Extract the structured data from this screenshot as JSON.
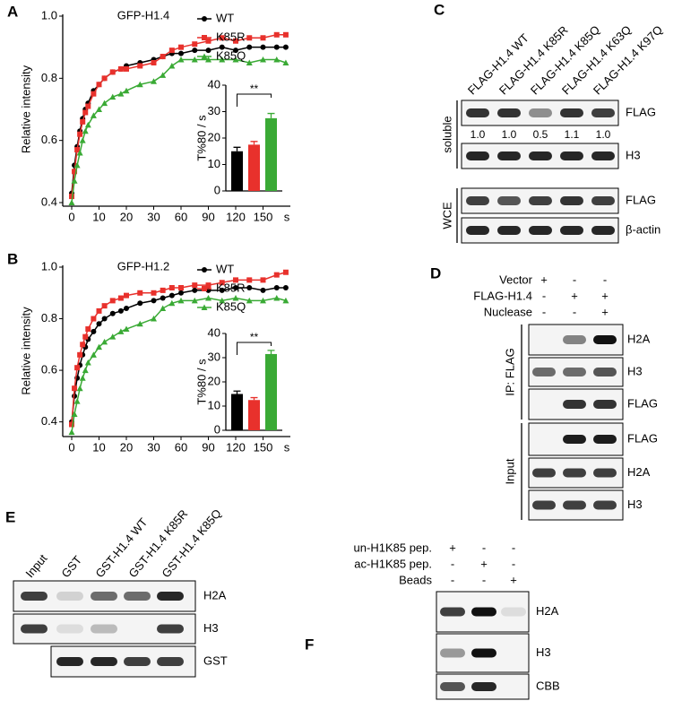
{
  "panel_labels": [
    "A",
    "B",
    "C",
    "D",
    "E",
    "F"
  ],
  "chart_data": [
    {
      "type": "line",
      "title": "GFP-H1.4",
      "y_label": "Relative intensity",
      "x_unit": "s",
      "x": [
        0,
        1,
        2,
        3,
        4,
        5,
        6,
        8,
        10,
        12,
        15,
        18,
        20,
        25,
        30,
        40,
        50,
        60,
        75,
        90,
        105,
        120,
        135,
        150,
        165,
        175
      ],
      "xlim": [
        0,
        180
      ],
      "xticks": [
        0,
        10,
        20,
        30,
        60,
        90,
        120,
        150
      ],
      "ylim": [
        0.4,
        1
      ],
      "yticks": [
        0.4,
        0.6,
        0.8,
        {
          "value": 1,
          "label": "1.0"
        }
      ],
      "series": [
        {
          "name": "WT",
          "color": "#000000",
          "values": [
            0.43,
            0.52,
            0.58,
            0.63,
            0.67,
            0.7,
            0.72,
            0.76,
            0.78,
            0.8,
            0.82,
            0.83,
            0.84,
            0.85,
            0.86,
            0.87,
            0.88,
            0.88,
            0.89,
            0.89,
            0.9,
            0.89,
            0.9,
            0.9,
            0.9,
            0.9
          ]
        },
        {
          "name": "K85R",
          "color": "#e8312c",
          "values": [
            0.42,
            0.5,
            0.57,
            0.62,
            0.66,
            0.69,
            0.71,
            0.75,
            0.78,
            0.8,
            0.82,
            0.83,
            0.83,
            0.84,
            0.85,
            0.87,
            0.89,
            0.9,
            0.91,
            0.92,
            0.93,
            0.92,
            0.93,
            0.93,
            0.94,
            0.94
          ]
        },
        {
          "name": "K85Q",
          "color": "#3aaa35",
          "values": [
            0.4,
            0.47,
            0.52,
            0.56,
            0.6,
            0.63,
            0.65,
            0.68,
            0.7,
            0.72,
            0.74,
            0.75,
            0.76,
            0.78,
            0.79,
            0.81,
            0.84,
            0.86,
            0.86,
            0.86,
            0.86,
            0.86,
            0.85,
            0.86,
            0.86,
            0.85
          ]
        }
      ]
    },
    {
      "type": "bar",
      "y_label": "T%80 / s",
      "values": [
        15,
        17.5,
        27.5
      ],
      "errors": [
        1.5,
        1.2,
        1.8
      ],
      "colors": [
        "#000000",
        "#e8312c",
        "#3aaa35"
      ],
      "ylim": [
        0,
        40
      ],
      "yticks": [
        0,
        10,
        20,
        30,
        40
      ],
      "annotation": "**"
    },
    {
      "type": "line",
      "title": "GFP-H1.2",
      "y_label": "Relative intensity",
      "x_unit": "s",
      "x": [
        0,
        1,
        2,
        3,
        4,
        5,
        6,
        8,
        10,
        12,
        15,
        18,
        20,
        25,
        30,
        40,
        50,
        60,
        75,
        90,
        105,
        120,
        135,
        150,
        165,
        175
      ],
      "xlim": [
        0,
        180
      ],
      "xticks": [
        0,
        10,
        20,
        30,
        60,
        90,
        120,
        150
      ],
      "ylim": [
        0.35,
        1
      ],
      "yticks": [
        0.4,
        0.6,
        0.8,
        {
          "value": 1,
          "label": "1.0"
        }
      ],
      "series": [
        {
          "name": "WT",
          "color": "#000000",
          "values": [
            0.4,
            0.5,
            0.57,
            0.62,
            0.66,
            0.69,
            0.72,
            0.75,
            0.78,
            0.8,
            0.82,
            0.83,
            0.84,
            0.86,
            0.87,
            0.88,
            0.89,
            0.9,
            0.91,
            0.91,
            0.91,
            0.92,
            0.92,
            0.91,
            0.92,
            0.92
          ]
        },
        {
          "name": "K85R",
          "color": "#e8312c",
          "values": [
            0.39,
            0.53,
            0.61,
            0.66,
            0.7,
            0.73,
            0.76,
            0.8,
            0.83,
            0.85,
            0.87,
            0.88,
            0.89,
            0.9,
            0.9,
            0.91,
            0.92,
            0.92,
            0.93,
            0.93,
            0.94,
            0.95,
            0.95,
            0.95,
            0.97,
            0.98
          ]
        },
        {
          "name": "K85Q",
          "color": "#3aaa35",
          "values": [
            0.36,
            0.43,
            0.48,
            0.53,
            0.57,
            0.6,
            0.63,
            0.66,
            0.69,
            0.71,
            0.73,
            0.75,
            0.76,
            0.78,
            0.8,
            0.84,
            0.86,
            0.87,
            0.87,
            0.88,
            0.87,
            0.88,
            0.87,
            0.87,
            0.88,
            0.87
          ]
        }
      ]
    },
    {
      "type": "bar",
      "y_label": "T%80 / s",
      "values": [
        15,
        12.5,
        31.5
      ],
      "errors": [
        1.2,
        1.0,
        1.5
      ],
      "colors": [
        "#000000",
        "#e8312c",
        "#3aaa35"
      ],
      "ylim": [
        0,
        40
      ],
      "yticks": [
        0,
        10,
        20,
        30,
        40
      ],
      "annotation": "**"
    }
  ],
  "blot_c": {
    "lanes": [
      "FLAG-H1.4 WT",
      "FLAG-H1.4 K85R",
      "FLAG-H1.4 K85Q",
      "FLAG-H1.4 K63Q",
      "FLAG-H1.4 K97Q"
    ],
    "groups": [
      {
        "label": "soluble",
        "rows": [
          {
            "label": "FLAG",
            "quantification": [
              "1.0",
              "1.0",
              "0.5",
              "1.1",
              "1.0"
            ]
          },
          {
            "label": "H3"
          }
        ]
      },
      {
        "label": "WCE",
        "rows": [
          {
            "label": "FLAG"
          },
          {
            "label": "β-actin"
          }
        ]
      }
    ]
  },
  "blot_d": {
    "conditions": [
      {
        "label": "Vector",
        "signs": [
          "+",
          "-",
          "-"
        ]
      },
      {
        "label": "FLAG-H1.4",
        "signs": [
          "-",
          "+",
          "+"
        ]
      },
      {
        "label": "Nuclease",
        "signs": [
          "-",
          "-",
          "+"
        ]
      }
    ],
    "groups": [
      {
        "label": "IP: FLAG",
        "rows": [
          {
            "label": "H2A"
          },
          {
            "label": "H3"
          },
          {
            "label": "FLAG"
          }
        ]
      },
      {
        "label": "Input",
        "rows": [
          {
            "label": "FLAG"
          },
          {
            "label": "H2A"
          },
          {
            "label": "H3"
          }
        ]
      }
    ]
  },
  "blot_e": {
    "lanes": [
      "Input",
      "GST",
      "GST-H1.4 WT",
      "GST-H1.4 K85R",
      "GST-H1.4 K85Q"
    ],
    "rows": [
      {
        "label": "H2A"
      },
      {
        "label": "H3"
      },
      {
        "label": "GST"
      }
    ]
  },
  "blot_f": {
    "conditions": [
      {
        "label": "un-H1K85 pep.",
        "signs": [
          "+",
          "-",
          "-"
        ]
      },
      {
        "label": "ac-H1K85 pep.",
        "signs": [
          "-",
          "+",
          "-"
        ]
      },
      {
        "label": "Beads",
        "signs": [
          "-",
          "-",
          "+"
        ]
      }
    ],
    "rows": [
      {
        "label": "H2A"
      },
      {
        "label": "H3"
      },
      {
        "label": "CBB"
      }
    ]
  }
}
